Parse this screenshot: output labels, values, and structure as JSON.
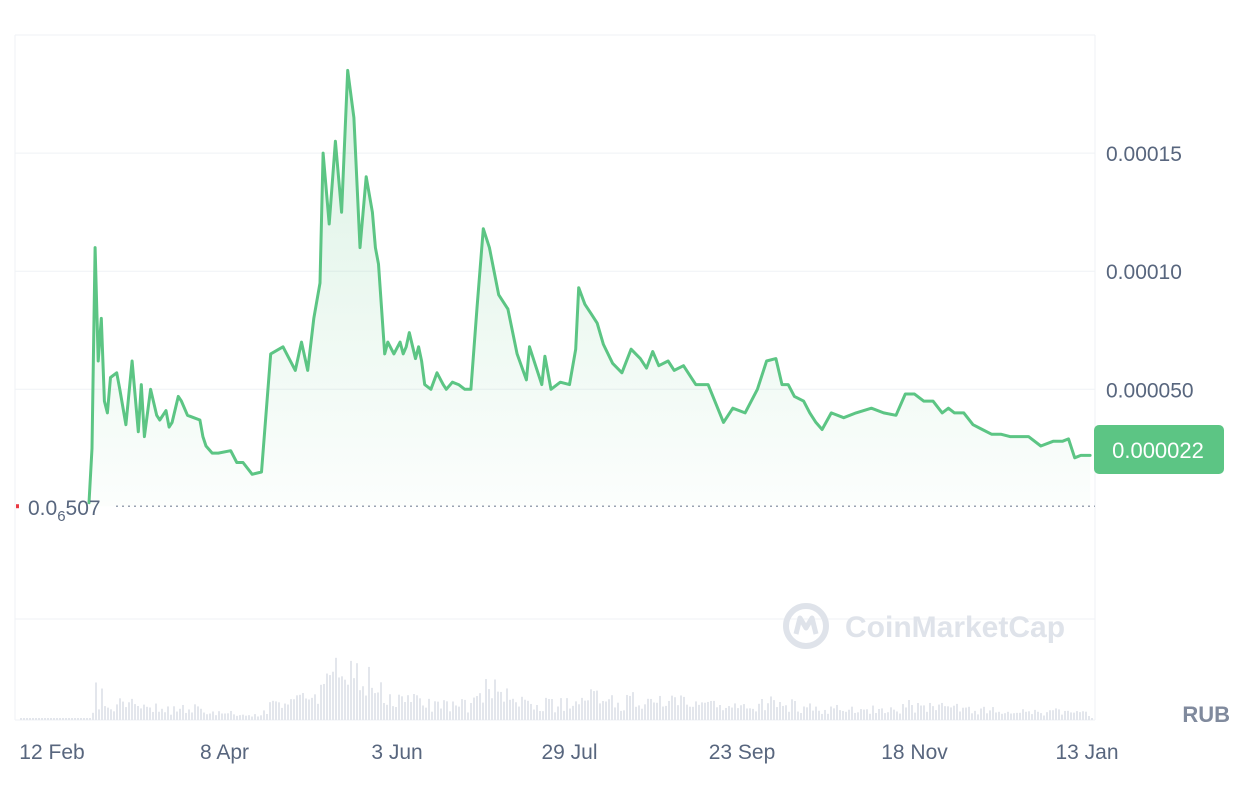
{
  "chart_data": {
    "type": "area",
    "currency": "RUB",
    "watermark": "CoinMarketCap",
    "y_ticks": [
      {
        "value": 0.00015,
        "label": "0.00015"
      },
      {
        "value": 0.0001,
        "label": "0.00010"
      },
      {
        "value": 5e-05,
        "label": "0.000050"
      }
    ],
    "x_ticks": [
      {
        "date": "2024-02-12",
        "label": "12 Feb"
      },
      {
        "date": "2024-04-08",
        "label": "8 Apr"
      },
      {
        "date": "2024-06-03",
        "label": "3 Jun"
      },
      {
        "date": "2024-07-29",
        "label": "29 Jul"
      },
      {
        "date": "2024-09-23",
        "label": "23 Sep"
      },
      {
        "date": "2024-11-18",
        "label": "18 Nov"
      },
      {
        "date": "2025-01-13",
        "label": "13 Jan"
      }
    ],
    "ylim": [
      -9e-05,
      0.0002
    ],
    "xlim": [
      "2024-02-12",
      "2025-01-13"
    ],
    "current_price": {
      "value": 2.2e-05,
      "label": "0.000022"
    },
    "baseline_price": {
      "value": 5.07e-07,
      "label_prefix": "0.0",
      "label_subscript": "6",
      "label_suffix": "507"
    },
    "colors": {
      "line": "#5cc584",
      "price_tag": "#5cc584",
      "grid": "#eff2f5",
      "axis_text": "#58667e",
      "volume": "#e3e6ec"
    },
    "series": [
      {
        "values_x": [
          "2024-02-24",
          "2024-02-25",
          "2024-02-26",
          "2024-02-27",
          "2024-02-28",
          "2024-02-29",
          "2024-03-01",
          "2024-03-02",
          "2024-03-04",
          "2024-03-05",
          "2024-03-07",
          "2024-03-09",
          "2024-03-11",
          "2024-03-12",
          "2024-03-13",
          "2024-03-15",
          "2024-03-17",
          "2024-03-18",
          "2024-03-20",
          "2024-03-21",
          "2024-03-22",
          "2024-03-24",
          "2024-03-25",
          "2024-03-27",
          "2024-03-29",
          "2024-03-31",
          "2024-04-01",
          "2024-04-02",
          "2024-04-04",
          "2024-04-06",
          "2024-04-10",
          "2024-04-12",
          "2024-04-14",
          "2024-04-17",
          "2024-04-20",
          "2024-04-23",
          "2024-04-27",
          "2024-05-01",
          "2024-05-03",
          "2024-05-05",
          "2024-05-07",
          "2024-05-09",
          "2024-05-10",
          "2024-05-12",
          "2024-05-14",
          "2024-05-16",
          "2024-05-18",
          "2024-05-20",
          "2024-05-22",
          "2024-05-24",
          "2024-05-26",
          "2024-05-27",
          "2024-05-28",
          "2024-05-30",
          "2024-05-31",
          "2024-06-02",
          "2024-06-04",
          "2024-06-05",
          "2024-06-06",
          "2024-06-07",
          "2024-06-09",
          "2024-06-10",
          "2024-06-11",
          "2024-06-12",
          "2024-06-14",
          "2024-06-16",
          "2024-06-18",
          "2024-06-19",
          "2024-06-21",
          "2024-06-23",
          "2024-06-25",
          "2024-06-27",
          "2024-06-29",
          "2024-07-01",
          "2024-07-03",
          "2024-07-06",
          "2024-07-09",
          "2024-07-12",
          "2024-07-15",
          "2024-07-16",
          "2024-07-18",
          "2024-07-20",
          "2024-07-21",
          "2024-07-23",
          "2024-07-26",
          "2024-07-29",
          "2024-07-31",
          "2024-08-01",
          "2024-08-03",
          "2024-08-05",
          "2024-08-07",
          "2024-08-09",
          "2024-08-12",
          "2024-08-15",
          "2024-08-18",
          "2024-08-21",
          "2024-08-23",
          "2024-08-25",
          "2024-08-27",
          "2024-08-30",
          "2024-09-01",
          "2024-09-04",
          "2024-09-08",
          "2024-09-12",
          "2024-09-17",
          "2024-09-20",
          "2024-09-24",
          "2024-09-28",
          "2024-10-01",
          "2024-10-04",
          "2024-10-06",
          "2024-10-08",
          "2024-10-10",
          "2024-10-13",
          "2024-10-15",
          "2024-10-17",
          "2024-10-19",
          "2024-10-22",
          "2024-10-26",
          "2024-10-30",
          "2024-11-04",
          "2024-11-08",
          "2024-11-12",
          "2024-11-15",
          "2024-11-18",
          "2024-11-21",
          "2024-11-24",
          "2024-11-27",
          "2024-11-29",
          "2024-12-01",
          "2024-12-04",
          "2024-12-07",
          "2024-12-10",
          "2024-12-13",
          "2024-12-16",
          "2024-12-19",
          "2024-12-22",
          "2024-12-25",
          "2024-12-29",
          "2025-01-02",
          "2025-01-05",
          "2025-01-07",
          "2025-01-09",
          "2025-01-11",
          "2025-01-13",
          "2025-01-14"
        ],
        "values_y": [
          2e-06,
          2.5e-05,
          0.00011,
          6.2e-05,
          8e-05,
          4.5e-05,
          4e-05,
          5.5e-05,
          5.7e-05,
          5e-05,
          3.5e-05,
          6.2e-05,
          3.2e-05,
          5.2e-05,
          3e-05,
          5e-05,
          3.9e-05,
          3.7e-05,
          4.1e-05,
          3.4e-05,
          3.6e-05,
          4.7e-05,
          4.5e-05,
          3.9e-05,
          3.8e-05,
          3.7e-05,
          3e-05,
          2.6e-05,
          2.3e-05,
          2.3e-05,
          2.4e-05,
          1.9e-05,
          1.9e-05,
          1.4e-05,
          1.5e-05,
          6.5e-05,
          6.8e-05,
          5.8e-05,
          7e-05,
          5.8e-05,
          8e-05,
          9.5e-05,
          0.00015,
          0.00012,
          0.000155,
          0.000125,
          0.000185,
          0.000165,
          0.00011,
          0.00014,
          0.000125,
          0.00011,
          0.000103,
          6.5e-05,
          7e-05,
          6.5e-05,
          7e-05,
          6.5e-05,
          6.8e-05,
          7.4e-05,
          6.3e-05,
          6.8e-05,
          6.2e-05,
          5.2e-05,
          5e-05,
          5.7e-05,
          5.2e-05,
          5e-05,
          5.3e-05,
          5.2e-05,
          5e-05,
          5e-05,
          8.5e-05,
          0.000118,
          0.00011,
          9e-05,
          8.4e-05,
          6.5e-05,
          5.4e-05,
          6.8e-05,
          6e-05,
          5.2e-05,
          6.4e-05,
          5e-05,
          5.3e-05,
          5.2e-05,
          6.7e-05,
          9.3e-05,
          8.6e-05,
          8.2e-05,
          7.8e-05,
          6.9e-05,
          6.1e-05,
          5.7e-05,
          6.7e-05,
          6.3e-05,
          5.9e-05,
          6.6e-05,
          6e-05,
          6.2e-05,
          5.8e-05,
          6e-05,
          5.2e-05,
          5.2e-05,
          3.6e-05,
          4.2e-05,
          4e-05,
          5e-05,
          6.2e-05,
          6.3e-05,
          5.2e-05,
          5.2e-05,
          4.7e-05,
          4.5e-05,
          4e-05,
          3.6e-05,
          3.3e-05,
          4e-05,
          3.8e-05,
          4e-05,
          4.2e-05,
          4e-05,
          3.9e-05,
          4.8e-05,
          4.8e-05,
          4.5e-05,
          4.5e-05,
          4e-05,
          4.2e-05,
          4e-05,
          4e-05,
          3.5e-05,
          3.3e-05,
          3.1e-05,
          3.1e-05,
          3e-05,
          3e-05,
          3e-05,
          2.6e-05,
          2.8e-05,
          2.8e-05,
          2.9e-05,
          2.1e-05,
          2.2e-05,
          2.2e-05,
          2.2e-05
        ]
      }
    ]
  }
}
